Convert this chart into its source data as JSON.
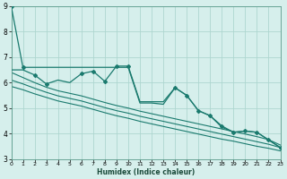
{
  "xlabel": "Humidex (Indice chaleur)",
  "xlim": [
    0,
    23
  ],
  "ylim": [
    3,
    9
  ],
  "yticks": [
    3,
    4,
    5,
    6,
    7,
    8,
    9
  ],
  "xticks": [
    0,
    1,
    2,
    3,
    4,
    5,
    6,
    7,
    8,
    9,
    10,
    11,
    12,
    13,
    14,
    15,
    16,
    17,
    18,
    19,
    20,
    21,
    22,
    23
  ],
  "bg_color": "#d6efec",
  "grid_color": "#aed6d0",
  "line_color": "#1a7a6e",
  "line1_y": [
    9.0,
    6.6,
    6.6,
    6.6,
    6.6,
    6.6,
    6.6,
    6.6,
    6.6,
    6.6,
    6.6,
    5.2,
    5.2,
    5.15,
    5.8,
    5.5,
    4.9,
    4.7,
    4.25,
    4.05,
    4.1,
    4.05,
    3.75,
    3.45
  ],
  "line2_y": [
    6.5,
    6.5,
    6.3,
    5.95,
    6.1,
    6.0,
    6.35,
    6.45,
    6.05,
    6.65,
    6.65,
    5.25,
    5.25,
    5.25,
    5.8,
    5.5,
    4.9,
    4.7,
    4.3,
    4.05,
    4.1,
    4.05,
    3.75,
    3.45
  ],
  "line3_y": [
    6.4,
    6.2,
    6.0,
    5.82,
    5.68,
    5.58,
    5.48,
    5.35,
    5.22,
    5.1,
    5.0,
    4.88,
    4.78,
    4.68,
    4.58,
    4.48,
    4.38,
    4.28,
    4.18,
    4.08,
    3.98,
    3.88,
    3.76,
    3.55
  ],
  "line4_y": [
    6.1,
    5.95,
    5.78,
    5.62,
    5.48,
    5.38,
    5.28,
    5.15,
    5.02,
    4.9,
    4.8,
    4.68,
    4.58,
    4.48,
    4.38,
    4.28,
    4.18,
    4.08,
    3.98,
    3.88,
    3.78,
    3.68,
    3.58,
    3.45
  ],
  "line5_y": [
    5.85,
    5.72,
    5.56,
    5.42,
    5.28,
    5.18,
    5.08,
    4.95,
    4.82,
    4.7,
    4.6,
    4.48,
    4.38,
    4.28,
    4.18,
    4.08,
    3.98,
    3.88,
    3.78,
    3.7,
    3.6,
    3.5,
    3.42,
    3.32
  ]
}
